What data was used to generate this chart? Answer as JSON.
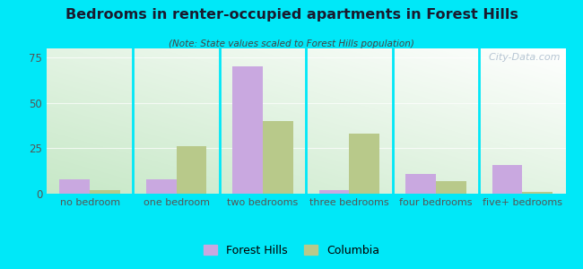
{
  "title": "Bedrooms in renter-occupied apartments in Forest Hills",
  "subtitle": "(Note: State values scaled to Forest Hills population)",
  "categories": [
    "no bedroom",
    "one bedroom",
    "two bedrooms",
    "three bedrooms",
    "four bedrooms",
    "five+ bedrooms"
  ],
  "forest_hills": [
    8,
    8,
    70,
    2,
    11,
    16
  ],
  "columbia": [
    2,
    26,
    40,
    33,
    7,
    1
  ],
  "fh_color": "#c9a8e0",
  "col_color": "#b8c98a",
  "bg_outer": "#00e8f8",
  "ylim": [
    0,
    80
  ],
  "yticks": [
    0,
    25,
    50,
    75
  ],
  "bar_width": 0.35,
  "legend_fh": "Forest Hills",
  "legend_col": "Columbia",
  "watermark": "  City-Data.com",
  "title_color": "#1a1a2e",
  "subtitle_color": "#444444",
  "tick_color": "#555555",
  "grid_color": "#ccddcc"
}
